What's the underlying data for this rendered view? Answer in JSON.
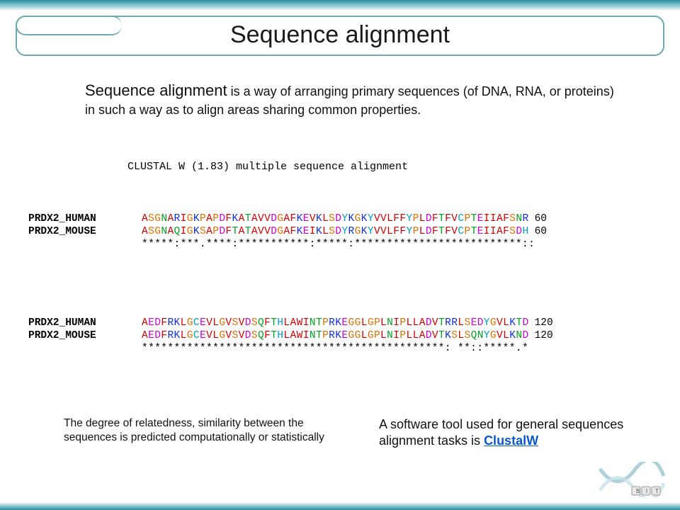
{
  "title": "Sequence alignment",
  "intro_lead": "Sequence alignment",
  "intro_rest": " is a way of arranging primary sequences (of DNA, RNA, or proteins) in such a way as to align  areas sharing common properties.",
  "alignment": {
    "header": "CLUSTAL W (1.83) multiple sequence alignment",
    "block1": {
      "rows": [
        {
          "label": "PRDX2_HUMAN",
          "pos": "60",
          "seq": [
            {
              "c": "r",
              "t": "A"
            },
            {
              "c": "o",
              "t": "S"
            },
            {
              "c": "o",
              "t": "G"
            },
            {
              "c": "g",
              "t": "N"
            },
            {
              "c": "r",
              "t": "A"
            },
            {
              "c": "b",
              "t": "R"
            },
            {
              "c": "r",
              "t": "I"
            },
            {
              "c": "o",
              "t": "G"
            },
            {
              "c": "b",
              "t": "K"
            },
            {
              "c": "o",
              "t": "P"
            },
            {
              "c": "r",
              "t": "A"
            },
            {
              "c": "o",
              "t": "P"
            },
            {
              "c": "m",
              "t": "D"
            },
            {
              "c": "r",
              "t": "F"
            },
            {
              "c": "b",
              "t": "K"
            },
            {
              "c": "r",
              "t": "A"
            },
            {
              "c": "g",
              "t": "T"
            },
            {
              "c": "r",
              "t": "A"
            },
            {
              "c": "r",
              "t": "V"
            },
            {
              "c": "r",
              "t": "V"
            },
            {
              "c": "m",
              "t": "D"
            },
            {
              "c": "o",
              "t": "G"
            },
            {
              "c": "r",
              "t": "A"
            },
            {
              "c": "r",
              "t": "F"
            },
            {
              "c": "b",
              "t": "K"
            },
            {
              "c": "m",
              "t": "E"
            },
            {
              "c": "r",
              "t": "V"
            },
            {
              "c": "b",
              "t": "K"
            },
            {
              "c": "r",
              "t": "L"
            },
            {
              "c": "o",
              "t": "S"
            },
            {
              "c": "m",
              "t": "D"
            },
            {
              "c": "c",
              "t": "Y"
            },
            {
              "c": "b",
              "t": "K"
            },
            {
              "c": "o",
              "t": "G"
            },
            {
              "c": "b",
              "t": "K"
            },
            {
              "c": "c",
              "t": "Y"
            },
            {
              "c": "r",
              "t": "V"
            },
            {
              "c": "r",
              "t": "V"
            },
            {
              "c": "r",
              "t": "L"
            },
            {
              "c": "r",
              "t": "F"
            },
            {
              "c": "r",
              "t": "F"
            },
            {
              "c": "c",
              "t": "Y"
            },
            {
              "c": "o",
              "t": "P"
            },
            {
              "c": "r",
              "t": "L"
            },
            {
              "c": "m",
              "t": "D"
            },
            {
              "c": "r",
              "t": "F"
            },
            {
              "c": "g",
              "t": "T"
            },
            {
              "c": "r",
              "t": "F"
            },
            {
              "c": "r",
              "t": "V"
            },
            {
              "c": "c",
              "t": "C"
            },
            {
              "c": "o",
              "t": "P"
            },
            {
              "c": "g",
              "t": "T"
            },
            {
              "c": "m",
              "t": "E"
            },
            {
              "c": "r",
              "t": "I"
            },
            {
              "c": "r",
              "t": "I"
            },
            {
              "c": "r",
              "t": "A"
            },
            {
              "c": "r",
              "t": "F"
            },
            {
              "c": "o",
              "t": "S"
            },
            {
              "c": "g",
              "t": "N"
            },
            {
              "c": "b",
              "t": "R"
            }
          ]
        },
        {
          "label": "PRDX2_MOUSE",
          "pos": "60",
          "seq": [
            {
              "c": "r",
              "t": "A"
            },
            {
              "c": "o",
              "t": "S"
            },
            {
              "c": "o",
              "t": "G"
            },
            {
              "c": "g",
              "t": "N"
            },
            {
              "c": "r",
              "t": "A"
            },
            {
              "c": "g",
              "t": "Q"
            },
            {
              "c": "r",
              "t": "I"
            },
            {
              "c": "o",
              "t": "G"
            },
            {
              "c": "b",
              "t": "K"
            },
            {
              "c": "o",
              "t": "S"
            },
            {
              "c": "r",
              "t": "A"
            },
            {
              "c": "o",
              "t": "P"
            },
            {
              "c": "m",
              "t": "D"
            },
            {
              "c": "r",
              "t": "F"
            },
            {
              "c": "g",
              "t": "T"
            },
            {
              "c": "r",
              "t": "A"
            },
            {
              "c": "g",
              "t": "T"
            },
            {
              "c": "r",
              "t": "A"
            },
            {
              "c": "r",
              "t": "V"
            },
            {
              "c": "r",
              "t": "V"
            },
            {
              "c": "m",
              "t": "D"
            },
            {
              "c": "o",
              "t": "G"
            },
            {
              "c": "r",
              "t": "A"
            },
            {
              "c": "r",
              "t": "F"
            },
            {
              "c": "b",
              "t": "K"
            },
            {
              "c": "m",
              "t": "E"
            },
            {
              "c": "r",
              "t": "I"
            },
            {
              "c": "b",
              "t": "K"
            },
            {
              "c": "r",
              "t": "L"
            },
            {
              "c": "o",
              "t": "S"
            },
            {
              "c": "m",
              "t": "D"
            },
            {
              "c": "c",
              "t": "Y"
            },
            {
              "c": "b",
              "t": "R"
            },
            {
              "c": "o",
              "t": "G"
            },
            {
              "c": "b",
              "t": "K"
            },
            {
              "c": "c",
              "t": "Y"
            },
            {
              "c": "r",
              "t": "V"
            },
            {
              "c": "r",
              "t": "V"
            },
            {
              "c": "r",
              "t": "L"
            },
            {
              "c": "r",
              "t": "F"
            },
            {
              "c": "r",
              "t": "F"
            },
            {
              "c": "c",
              "t": "Y"
            },
            {
              "c": "o",
              "t": "P"
            },
            {
              "c": "r",
              "t": "L"
            },
            {
              "c": "m",
              "t": "D"
            },
            {
              "c": "r",
              "t": "F"
            },
            {
              "c": "g",
              "t": "T"
            },
            {
              "c": "r",
              "t": "F"
            },
            {
              "c": "r",
              "t": "V"
            },
            {
              "c": "c",
              "t": "C"
            },
            {
              "c": "o",
              "t": "P"
            },
            {
              "c": "g",
              "t": "T"
            },
            {
              "c": "m",
              "t": "E"
            },
            {
              "c": "r",
              "t": "I"
            },
            {
              "c": "r",
              "t": "I"
            },
            {
              "c": "r",
              "t": "A"
            },
            {
              "c": "r",
              "t": "F"
            },
            {
              "c": "o",
              "t": "S"
            },
            {
              "c": "m",
              "t": "D"
            },
            {
              "c": "c",
              "t": "H"
            }
          ]
        }
      ],
      "consensus": "*****:***.****:***********:*****:**************************::"
    },
    "block2": {
      "rows": [
        {
          "label": "PRDX2_HUMAN",
          "pos": "120",
          "seq": [
            {
              "c": "r",
              "t": "A"
            },
            {
              "c": "m",
              "t": "E"
            },
            {
              "c": "m",
              "t": "D"
            },
            {
              "c": "r",
              "t": "F"
            },
            {
              "c": "b",
              "t": "R"
            },
            {
              "c": "b",
              "t": "K"
            },
            {
              "c": "r",
              "t": "L"
            },
            {
              "c": "o",
              "t": "G"
            },
            {
              "c": "c",
              "t": "C"
            },
            {
              "c": "m",
              "t": "E"
            },
            {
              "c": "r",
              "t": "V"
            },
            {
              "c": "r",
              "t": "L"
            },
            {
              "c": "o",
              "t": "G"
            },
            {
              "c": "r",
              "t": "V"
            },
            {
              "c": "o",
              "t": "S"
            },
            {
              "c": "r",
              "t": "V"
            },
            {
              "c": "m",
              "t": "D"
            },
            {
              "c": "o",
              "t": "S"
            },
            {
              "c": "g",
              "t": "Q"
            },
            {
              "c": "r",
              "t": "F"
            },
            {
              "c": "g",
              "t": "T"
            },
            {
              "c": "c",
              "t": "H"
            },
            {
              "c": "r",
              "t": "L"
            },
            {
              "c": "r",
              "t": "A"
            },
            {
              "c": "r",
              "t": "W"
            },
            {
              "c": "r",
              "t": "I"
            },
            {
              "c": "g",
              "t": "N"
            },
            {
              "c": "g",
              "t": "T"
            },
            {
              "c": "o",
              "t": "P"
            },
            {
              "c": "b",
              "t": "R"
            },
            {
              "c": "b",
              "t": "K"
            },
            {
              "c": "m",
              "t": "E"
            },
            {
              "c": "o",
              "t": "G"
            },
            {
              "c": "o",
              "t": "G"
            },
            {
              "c": "r",
              "t": "L"
            },
            {
              "c": "o",
              "t": "G"
            },
            {
              "c": "o",
              "t": "P"
            },
            {
              "c": "r",
              "t": "L"
            },
            {
              "c": "g",
              "t": "N"
            },
            {
              "c": "r",
              "t": "I"
            },
            {
              "c": "o",
              "t": "P"
            },
            {
              "c": "r",
              "t": "L"
            },
            {
              "c": "r",
              "t": "L"
            },
            {
              "c": "r",
              "t": "A"
            },
            {
              "c": "m",
              "t": "D"
            },
            {
              "c": "r",
              "t": "V"
            },
            {
              "c": "g",
              "t": "T"
            },
            {
              "c": "b",
              "t": "R"
            },
            {
              "c": "b",
              "t": "R"
            },
            {
              "c": "r",
              "t": "L"
            },
            {
              "c": "o",
              "t": "S"
            },
            {
              "c": "m",
              "t": "E"
            },
            {
              "c": "m",
              "t": "D"
            },
            {
              "c": "c",
              "t": "Y"
            },
            {
              "c": "o",
              "t": "G"
            },
            {
              "c": "r",
              "t": "V"
            },
            {
              "c": "r",
              "t": "L"
            },
            {
              "c": "b",
              "t": "K"
            },
            {
              "c": "g",
              "t": "T"
            },
            {
              "c": "m",
              "t": "D"
            }
          ]
        },
        {
          "label": "PRDX2_MOUSE",
          "pos": "120",
          "seq": [
            {
              "c": "r",
              "t": "A"
            },
            {
              "c": "m",
              "t": "E"
            },
            {
              "c": "m",
              "t": "D"
            },
            {
              "c": "r",
              "t": "F"
            },
            {
              "c": "b",
              "t": "R"
            },
            {
              "c": "b",
              "t": "K"
            },
            {
              "c": "r",
              "t": "L"
            },
            {
              "c": "o",
              "t": "G"
            },
            {
              "c": "c",
              "t": "C"
            },
            {
              "c": "m",
              "t": "E"
            },
            {
              "c": "r",
              "t": "V"
            },
            {
              "c": "r",
              "t": "L"
            },
            {
              "c": "o",
              "t": "G"
            },
            {
              "c": "r",
              "t": "V"
            },
            {
              "c": "o",
              "t": "S"
            },
            {
              "c": "r",
              "t": "V"
            },
            {
              "c": "m",
              "t": "D"
            },
            {
              "c": "o",
              "t": "S"
            },
            {
              "c": "g",
              "t": "Q"
            },
            {
              "c": "r",
              "t": "F"
            },
            {
              "c": "g",
              "t": "T"
            },
            {
              "c": "c",
              "t": "H"
            },
            {
              "c": "r",
              "t": "L"
            },
            {
              "c": "r",
              "t": "A"
            },
            {
              "c": "r",
              "t": "W"
            },
            {
              "c": "r",
              "t": "I"
            },
            {
              "c": "g",
              "t": "N"
            },
            {
              "c": "g",
              "t": "T"
            },
            {
              "c": "o",
              "t": "P"
            },
            {
              "c": "b",
              "t": "R"
            },
            {
              "c": "b",
              "t": "K"
            },
            {
              "c": "m",
              "t": "E"
            },
            {
              "c": "o",
              "t": "G"
            },
            {
              "c": "o",
              "t": "G"
            },
            {
              "c": "r",
              "t": "L"
            },
            {
              "c": "o",
              "t": "G"
            },
            {
              "c": "o",
              "t": "P"
            },
            {
              "c": "r",
              "t": "L"
            },
            {
              "c": "g",
              "t": "N"
            },
            {
              "c": "r",
              "t": "I"
            },
            {
              "c": "o",
              "t": "P"
            },
            {
              "c": "r",
              "t": "L"
            },
            {
              "c": "r",
              "t": "L"
            },
            {
              "c": "r",
              "t": "A"
            },
            {
              "c": "m",
              "t": "D"
            },
            {
              "c": "r",
              "t": "V"
            },
            {
              "c": "g",
              "t": "T"
            },
            {
              "c": "b",
              "t": "K"
            },
            {
              "c": "o",
              "t": "S"
            },
            {
              "c": "r",
              "t": "L"
            },
            {
              "c": "o",
              "t": "S"
            },
            {
              "c": "g",
              "t": "Q"
            },
            {
              "c": "g",
              "t": "N"
            },
            {
              "c": "c",
              "t": "Y"
            },
            {
              "c": "o",
              "t": "G"
            },
            {
              "c": "r",
              "t": "V"
            },
            {
              "c": "r",
              "t": "L"
            },
            {
              "c": "b",
              "t": "K"
            },
            {
              "c": "g",
              "t": "N"
            },
            {
              "c": "m",
              "t": "D"
            }
          ]
        }
      ],
      "consensus": "***********************************************: **::*****.*"
    }
  },
  "note_left": "The degree of relatedness, similarity between the sequences is predicted computationally or statistically",
  "note_right_pre": "A software tool used for general sequences alignment tasks is ",
  "note_right_link": "ClustalW"
}
